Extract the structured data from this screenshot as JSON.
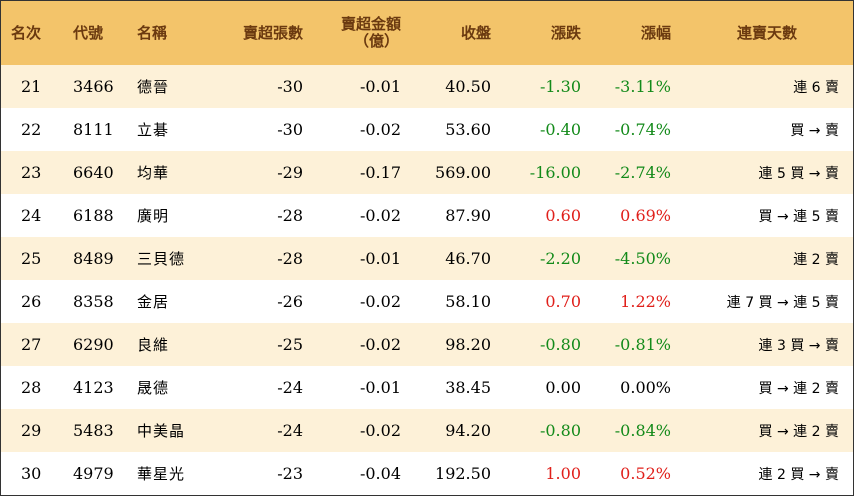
{
  "headers": {
    "rank": "名次",
    "code": "代號",
    "name": "名稱",
    "net_sell_lots": "賣超張數",
    "net_sell_amount_line1": "賣超金額",
    "net_sell_amount_line2": "（億）",
    "close": "收盤",
    "change": "漲跌",
    "change_pct": "漲幅",
    "consecutive_days": "連賣天數"
  },
  "colors": {
    "header_bg": "#f3c46a",
    "header_text": "#6b3a10",
    "odd_row_bg": "#fdf1d8",
    "up": "#e0201b",
    "down": "#138a1a"
  },
  "rows": [
    {
      "rank": "21",
      "code": "3466",
      "name": "德晉",
      "lots": "-30",
      "amount": "-0.01",
      "close": "40.50",
      "change": "-1.30",
      "pct": "-3.11%",
      "trend": "down",
      "days": "連 6 賣"
    },
    {
      "rank": "22",
      "code": "8111",
      "name": "立碁",
      "lots": "-30",
      "amount": "-0.02",
      "close": "53.60",
      "change": "-0.40",
      "pct": "-0.74%",
      "trend": "down",
      "days": "買 → 賣"
    },
    {
      "rank": "23",
      "code": "6640",
      "name": "均華",
      "lots": "-29",
      "amount": "-0.17",
      "close": "569.00",
      "change": "-16.00",
      "pct": "-2.74%",
      "trend": "down",
      "days": "連 5 買 → 賣"
    },
    {
      "rank": "24",
      "code": "6188",
      "name": "廣明",
      "lots": "-28",
      "amount": "-0.02",
      "close": "87.90",
      "change": "0.60",
      "pct": "0.69%",
      "trend": "up",
      "days": "買 → 連 5 賣"
    },
    {
      "rank": "25",
      "code": "8489",
      "name": "三貝德",
      "lots": "-28",
      "amount": "-0.01",
      "close": "46.70",
      "change": "-2.20",
      "pct": "-4.50%",
      "trend": "down",
      "days": "連 2 賣"
    },
    {
      "rank": "26",
      "code": "8358",
      "name": "金居",
      "lots": "-26",
      "amount": "-0.02",
      "close": "58.10",
      "change": "0.70",
      "pct": "1.22%",
      "trend": "up",
      "days": "連 7 買 → 連 5 賣"
    },
    {
      "rank": "27",
      "code": "6290",
      "name": "良維",
      "lots": "-25",
      "amount": "-0.02",
      "close": "98.20",
      "change": "-0.80",
      "pct": "-0.81%",
      "trend": "down",
      "days": "連 3 買 → 賣"
    },
    {
      "rank": "28",
      "code": "4123",
      "name": "晟德",
      "lots": "-24",
      "amount": "-0.01",
      "close": "38.45",
      "change": "0.00",
      "pct": "0.00%",
      "trend": "flat",
      "days": "買 → 連 2 賣"
    },
    {
      "rank": "29",
      "code": "5483",
      "name": "中美晶",
      "lots": "-24",
      "amount": "-0.02",
      "close": "94.20",
      "change": "-0.80",
      "pct": "-0.84%",
      "trend": "down",
      "days": "買 → 連 2 賣"
    },
    {
      "rank": "30",
      "code": "4979",
      "name": "華星光",
      "lots": "-23",
      "amount": "-0.04",
      "close": "192.50",
      "change": "1.00",
      "pct": "0.52%",
      "trend": "up",
      "days": "連 2 買 → 賣"
    }
  ]
}
